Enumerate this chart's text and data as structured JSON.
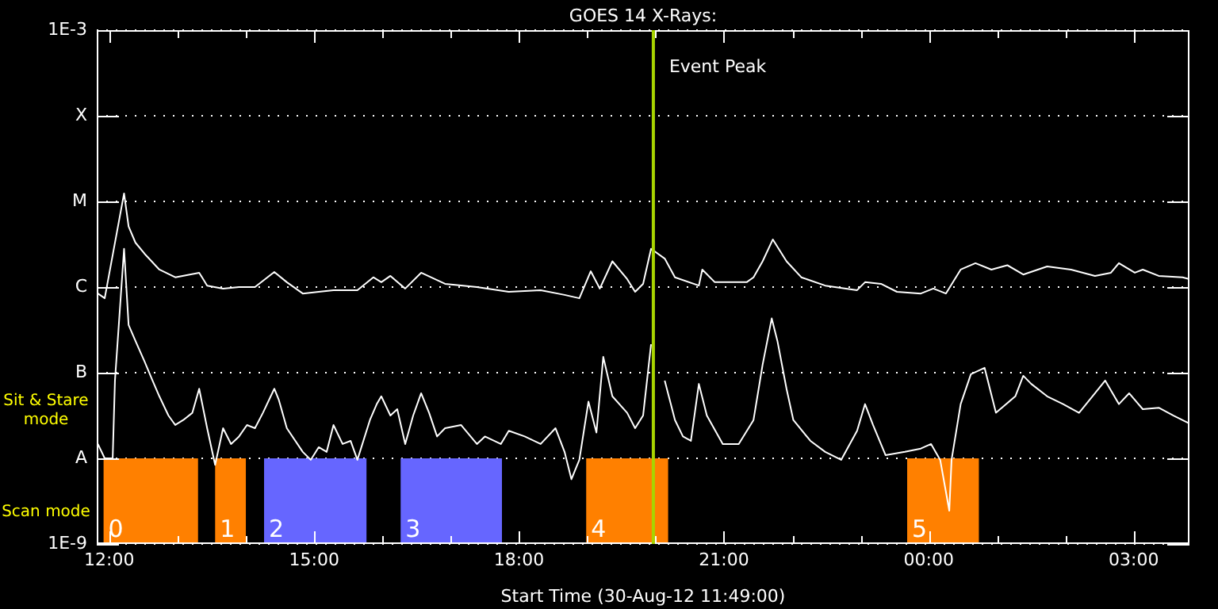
{
  "chart_data": {
    "type": "line",
    "title": "GOES 14 X-Rays:",
    "xlabel": "Start Time (30-Aug-12 11:49:00)",
    "annotations": [
      "Sit & Stare mode",
      "Scan mode"
    ],
    "xlim": [
      "--08-30T11:49",
      "--08-31T03:49"
    ],
    "xticks": [
      {
        "value": "--08-30T12:00",
        "label": "12:00"
      },
      {
        "value": "--08-30T13:00",
        "label": null
      },
      {
        "value": "--08-30T14:00",
        "label": null
      },
      {
        "value": "--08-30T15:00",
        "label": "15:00"
      },
      {
        "value": "--08-30T16:00",
        "label": null
      },
      {
        "value": "--08-30T17:00",
        "label": null
      },
      {
        "value": "--08-30T18:00",
        "label": "18:00"
      },
      {
        "value": "--08-30T19:00",
        "label": null
      },
      {
        "value": "--08-30T20:00",
        "label": null
      },
      {
        "value": "--08-30T21:00",
        "label": "21:00"
      },
      {
        "value": "--08-30T22:00",
        "label": null
      },
      {
        "value": "--08-30T23:00",
        "label": null
      },
      {
        "value": "--08-31T00:00",
        "label": "00:00"
      },
      {
        "value": "--08-31T01:00",
        "label": null
      },
      {
        "value": "--08-31T02:00",
        "label": null
      },
      {
        "value": "--08-31T03:00",
        "label": "03:00"
      }
    ],
    "ylim": [
      1e-09,
      0.001
    ],
    "yticks": [
      {
        "value": 1e-09,
        "label": "1E-9"
      },
      {
        "value": 1e-08,
        "label": "A"
      },
      {
        "value": 1e-07,
        "label": "B"
      },
      {
        "value": 1e-06,
        "label": "C"
      },
      {
        "value": 1e-05,
        "label": "M"
      },
      {
        "value": 0.0001,
        "label": "X"
      },
      {
        "value": 0.001,
        "label": "1E-3"
      }
    ],
    "log": true,
    "grid": "y",
    "marker": "none",
    "line_style": "solid",
    "series": [
      {
        "color": "#ffffff",
        "x": [
          "--08-30T11:50",
          "--08-30T11:56",
          "--08-30T12:13",
          "--08-30T12:17",
          "--08-30T12:23",
          "--08-30T12:31",
          "--08-30T12:44",
          "--08-30T12:58",
          "--08-30T13:19",
          "--08-30T13:26",
          "--08-30T13:40",
          "--08-30T13:54",
          "--08-30T14:08",
          "--08-30T14:25",
          "--08-30T14:36",
          "--08-30T14:50",
          "--08-30T15:04",
          "--08-30T15:17",
          "--08-30T15:38",
          "--08-30T15:52",
          "--08-30T15:59",
          "--08-30T16:07",
          "--08-30T16:20",
          "--08-30T16:34",
          "--08-30T16:55",
          "--08-30T17:23",
          "--08-30T17:51",
          "--08-30T18:19",
          "--08-30T18:40",
          "--08-30T18:53",
          "--08-30T19:03",
          "--08-30T19:11",
          "--08-30T19:22",
          "--08-30T19:35",
          "--08-30T19:42",
          "--08-30T19:49",
          "--08-30T19:56",
          "--08-30T20:08",
          "--08-30T20:17",
          "--08-30T20:38",
          "--08-30T20:41",
          "--08-30T20:52",
          "--08-30T21:20",
          "--08-30T21:26",
          "--08-30T21:34",
          "--08-30T21:43",
          "--08-30T21:55",
          "--08-30T22:08",
          "--08-30T22:29",
          "--08-30T22:57",
          "--08-30T23:04",
          "--08-30T23:18",
          "--08-30T23:32",
          "--08-30T23:53",
          "--08-31T00:04",
          "--08-31T00:15",
          "--08-31T00:28",
          "--08-31T00:41",
          "--08-31T00:55",
          "--08-31T01:09",
          "--08-31T01:23",
          "--08-31T01:44",
          "--08-31T02:05",
          "--08-31T02:26",
          "--08-31T02:40",
          "--08-31T02:47",
          "--08-31T03:01",
          "--08-31T03:08",
          "--08-31T03:22",
          "--08-31T03:43",
          "--08-31T03:49"
        ],
        "values": [
          8.4e-07,
          7.4e-07,
          1.24e-05,
          5.1e-06,
          3.3e-06,
          2.45e-06,
          1.6e-06,
          1.3e-06,
          1.47e-06,
          1.04e-06,
          9.6e-07,
          1e-06,
          1e-06,
          1.5e-06,
          1.14e-06,
          8.4e-07,
          8.8e-07,
          9.2e-07,
          9.2e-07,
          1.3e-06,
          1.14e-06,
          1.35e-06,
          9.6e-07,
          1.47e-06,
          1.09e-06,
          1e-06,
          8.8e-07,
          9.2e-07,
          8.1e-07,
          7.4e-07,
          1.53e-06,
          9.6e-07,
          2e-06,
          1.24e-06,
          8.8e-07,
          1.09e-06,
          2.8e-06,
          2.15e-06,
          1.3e-06,
          1.04e-06,
          1.6e-06,
          1.14e-06,
          1.14e-06,
          1.3e-06,
          2e-06,
          3.6e-06,
          2e-06,
          1.3e-06,
          1.04e-06,
          9.2e-07,
          1.14e-06,
          1.09e-06,
          8.8e-07,
          8.4e-07,
          9.6e-07,
          8.4e-07,
          1.6e-06,
          1.9e-06,
          1.6e-06,
          1.8e-06,
          1.4e-06,
          1.74e-06,
          1.6e-06,
          1.35e-06,
          1.47e-06,
          1.9e-06,
          1.47e-06,
          1.6e-06,
          1.35e-06,
          1.3e-06,
          1.24e-06
        ]
      },
      {
        "color": "#ffffff",
        "x": [
          "--08-30T11:50",
          "--08-30T11:56",
          "--08-30T12:03",
          "--08-30T12:05",
          "--08-30T12:13",
          "--08-30T12:17",
          "--08-30T12:23",
          "--08-30T12:31",
          "--08-30T12:38",
          "--08-30T12:44",
          "--08-30T12:52",
          "--08-30T12:58",
          "--08-30T13:05",
          "--08-30T13:13",
          "--08-30T13:19",
          "--08-30T13:26",
          "--08-30T13:33",
          "--08-30T13:40",
          "--08-30T13:47",
          "--08-30T13:54",
          "--08-30T14:01",
          "--08-30T14:08",
          "--08-30T14:15",
          "--08-30T14:25",
          "--08-30T14:29",
          "--08-30T14:36",
          "--08-30T14:50",
          "--08-30T14:57",
          "--08-30T15:04",
          "--08-30T15:11",
          "--08-30T15:17",
          "--08-30T15:25",
          "--08-30T15:32",
          "--08-30T15:38",
          "--08-30T15:49",
          "--08-30T15:55",
          "--08-30T15:59",
          "--08-30T16:07",
          "--08-30T16:13",
          "--08-30T16:20",
          "--08-30T16:27",
          "--08-30T16:34",
          "--08-30T16:41",
          "--08-30T16:48",
          "--08-30T16:55",
          "--08-30T17:09",
          "--08-30T17:23",
          "--08-30T17:30",
          "--08-30T17:44",
          "--08-30T17:51",
          "--08-30T18:05",
          "--08-30T18:19",
          "--08-30T18:32",
          "--08-30T18:40",
          "--08-30T18:46",
          "--08-30T18:53",
          "--08-30T19:01",
          "--08-30T19:08",
          "--08-30T19:14",
          "--08-30T19:22",
          "--08-30T19:35",
          "--08-30T19:42",
          "--08-30T19:49",
          "--08-30T19:56",
          "--08-30T20:03",
          "--08-30T20:08",
          "--08-30T20:17",
          "--08-30T20:24",
          "--08-30T20:31",
          "--08-30T20:38",
          "--08-30T20:45",
          "--08-30T20:59",
          "--08-30T21:13",
          "--08-30T21:26",
          "--08-30T21:34",
          "--08-30T21:42",
          "--08-30T21:47",
          "--08-30T21:55",
          "--08-30T22:01",
          "--08-30T22:16",
          "--08-30T22:29",
          "--08-30T22:43",
          "--08-30T22:57",
          "--08-30T23:04",
          "--08-30T23:11",
          "--08-30T23:22",
          "--08-30T23:39",
          "--08-30T23:53",
          "--08-31T00:02",
          "--08-31T00:10",
          "--08-31T00:18",
          "--08-31T00:20",
          "--08-31T00:28",
          "--08-31T00:37",
          "--08-31T00:49",
          "--08-31T00:59",
          "--08-31T01:16",
          "--08-31T01:23",
          "--08-31T01:30",
          "--08-31T01:44",
          "--08-31T01:58",
          "--08-31T02:12",
          "--08-31T02:26",
          "--08-31T02:35",
          "--08-31T02:47",
          "--08-31T02:56",
          "--08-31T03:08",
          "--08-31T03:22",
          "--08-31T03:35",
          "--08-31T03:49"
        ],
        "values": [
          1.47e-08,
          1e-08,
          1e-08,
          8.1e-08,
          2.8e-06,
          3.6e-07,
          2.35e-07,
          1.35e-07,
          8.1e-08,
          5.3e-08,
          3.16e-08,
          2.45e-08,
          2.8e-08,
          3.4e-08,
          6.5e-08,
          2.25e-08,
          8.4e-09,
          2.25e-08,
          1.47e-08,
          1.8e-08,
          2.45e-08,
          2.25e-08,
          3.4e-08,
          6.5e-08,
          4.8e-08,
          2.25e-08,
          1.19e-08,
          9.6e-09,
          1.35e-08,
          1.19e-08,
          2.45e-08,
          1.47e-08,
          1.6e-08,
          9.6e-09,
          2.8e-08,
          4.3e-08,
          5.3e-08,
          3.16e-08,
          3.75e-08,
          1.47e-08,
          3.16e-08,
          5.75e-08,
          3.4e-08,
          1.8e-08,
          2.25e-08,
          2.45e-08,
          1.47e-08,
          1.8e-08,
          1.47e-08,
          2.1e-08,
          1.8e-08,
          1.47e-08,
          2.25e-08,
          1.19e-08,
          5.7e-09,
          9.6e-09,
          4.6e-08,
          2e-08,
          1.53e-07,
          5.3e-08,
          3.4e-08,
          2.25e-08,
          3.16e-08,
          2.15e-07,
          null,
          8.1e-08,
          2.8e-08,
          1.8e-08,
          1.6e-08,
          7.4e-08,
          3.16e-08,
          1.47e-08,
          1.47e-08,
          2.8e-08,
          1.24e-07,
          4.3e-07,
          2.35e-07,
          6.5e-08,
          2.8e-08,
          1.6e-08,
          1.19e-08,
          9.6e-09,
          2.1e-08,
          4.3e-08,
          2.45e-08,
          1.09e-08,
          1.19e-08,
          1.3e-08,
          1.47e-08,
          9.6e-09,
          2.45e-09,
          9.6e-09,
          4.3e-08,
          9.6e-08,
          1.14e-07,
          3.4e-08,
          5.3e-08,
          9.2e-08,
          7.4e-08,
          5.3e-08,
          4.3e-08,
          3.4e-08,
          5.75e-08,
          8.1e-08,
          4.3e-08,
          5.75e-08,
          3.75e-08,
          3.9e-08,
          3.16e-08,
          2.55e-08
        ]
      }
    ],
    "ref_lines": [
      {
        "axis": "x",
        "value": "--08-30T19:58",
        "label": "Event Peak",
        "color": "#a8d400"
      }
    ],
    "bands": [
      {
        "axis": "x",
        "from": "--08-30T11:55",
        "to": "--08-30T13:18",
        "label": "0",
        "color": "#ff8000"
      },
      {
        "axis": "x",
        "from": "--08-30T13:33",
        "to": "--08-30T14:00",
        "label": "1",
        "color": "#ff8000"
      },
      {
        "axis": "x",
        "from": "--08-30T14:16",
        "to": "--08-30T15:46",
        "label": "2",
        "color": "#6666ff"
      },
      {
        "axis": "x",
        "from": "--08-30T16:16",
        "to": "--08-30T17:45",
        "label": "3",
        "color": "#6666ff"
      },
      {
        "axis": "x",
        "from": "--08-30T18:59",
        "to": "--08-30T20:11",
        "label": "4",
        "color": "#ff8000"
      },
      {
        "axis": "x",
        "from": "--08-30T23:41",
        "to": "--08-31T00:44",
        "label": "5",
        "color": "#ff8000"
      }
    ]
  }
}
